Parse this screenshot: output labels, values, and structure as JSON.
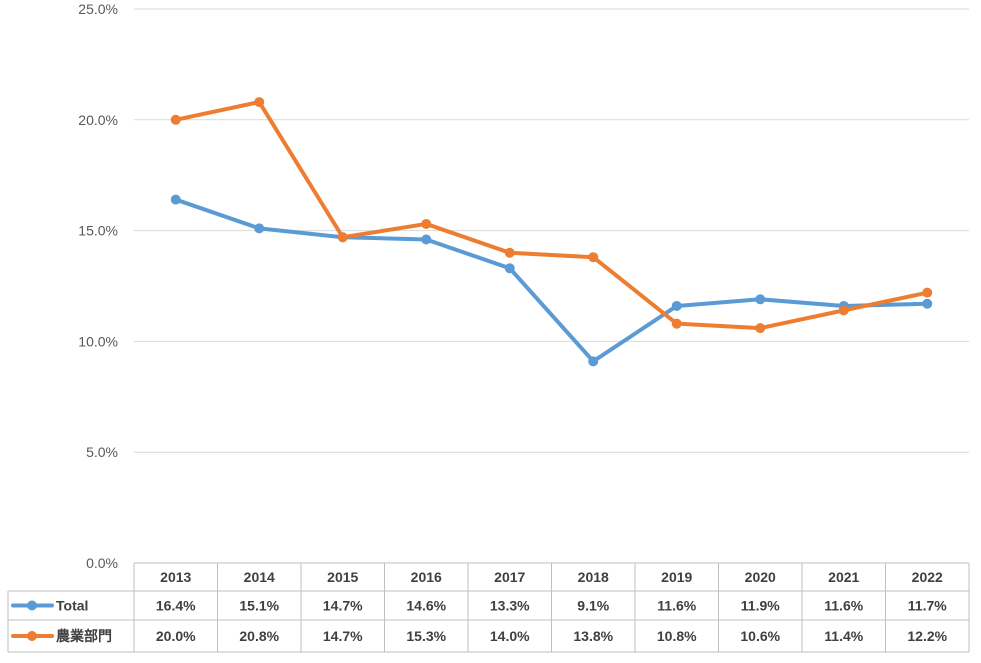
{
  "chart_data": {
    "type": "line",
    "categories": [
      "2013",
      "2014",
      "2015",
      "2016",
      "2017",
      "2018",
      "2019",
      "2020",
      "2021",
      "2022"
    ],
    "series": [
      {
        "name": "Total",
        "color": "#5B9BD5",
        "values": [
          16.4,
          15.1,
          14.7,
          14.6,
          13.3,
          9.1,
          11.6,
          11.9,
          11.6,
          11.7
        ],
        "labels": [
          "16.4%",
          "15.1%",
          "14.7%",
          "14.6%",
          "13.3%",
          "9.1%",
          "11.6%",
          "11.9%",
          "11.6%",
          "11.7%"
        ]
      },
      {
        "name": "農業部門",
        "color": "#ED7D31",
        "values": [
          20.0,
          20.8,
          14.7,
          15.3,
          14.0,
          13.8,
          10.8,
          10.6,
          11.4,
          12.2
        ],
        "labels": [
          "20.0%",
          "20.8%",
          "14.7%",
          "15.3%",
          "14.0%",
          "13.8%",
          "10.8%",
          "10.6%",
          "11.4%",
          "12.2%"
        ]
      }
    ],
    "yticks": [
      "0.0%",
      "5.0%",
      "10.0%",
      "15.0%",
      "20.0%",
      "25.0%"
    ],
    "ylim": [
      0,
      25
    ],
    "grid": true,
    "legend": "data-table"
  }
}
